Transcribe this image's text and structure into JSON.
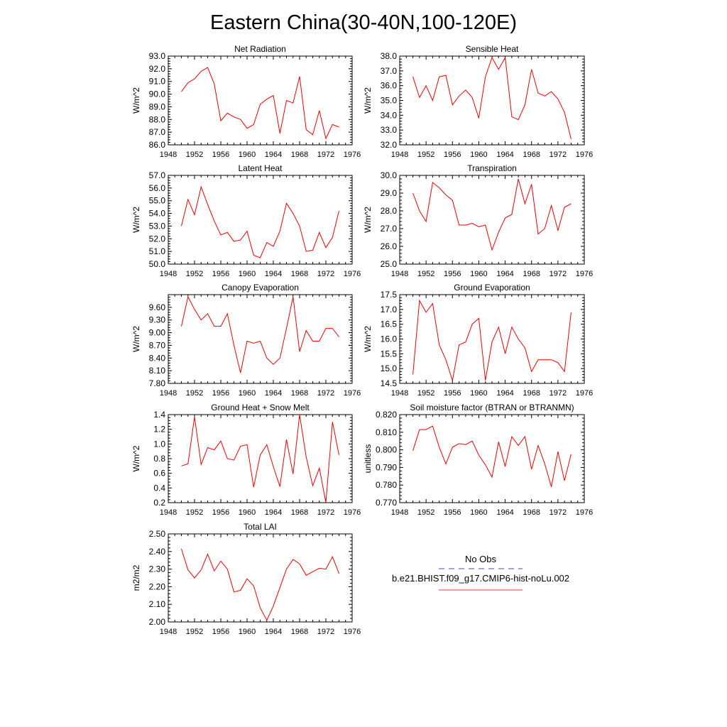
{
  "title": "Eastern China(30-40N,100-120E)",
  "legend": {
    "entries": [
      {
        "label": "No Obs",
        "color": "#4b4b9a",
        "style": "dashed"
      },
      {
        "label": "b.e21.BHIST.f09_g17.CMIP6-hist-noLu.002",
        "color": "#ee3333",
        "style": "solid"
      }
    ]
  },
  "chart_data": [
    {
      "type": "line",
      "title": "Net Radiation",
      "ylabel": "W/m^2",
      "xlim": [
        1948,
        1976
      ],
      "ylim": [
        86.0,
        93.0
      ],
      "xticks": [
        1948,
        1952,
        1956,
        1960,
        1964,
        1968,
        1972,
        1976
      ],
      "yticks": [
        "86.0",
        "87.0",
        "88.0",
        "89.0",
        "90.0",
        "91.0",
        "92.0",
        "93.0"
      ],
      "series": [
        {
          "color": "#ee0000",
          "x": [
            1950,
            1951,
            1952,
            1953,
            1954,
            1955,
            1956,
            1957,
            1958,
            1959,
            1960,
            1961,
            1962,
            1963,
            1964,
            1965,
            1966,
            1967,
            1968,
            1969,
            1970,
            1971,
            1972,
            1973,
            1974
          ],
          "y": [
            90.2,
            90.9,
            91.2,
            91.8,
            92.1,
            90.8,
            87.9,
            88.5,
            88.2,
            88.0,
            87.3,
            87.6,
            89.2,
            89.6,
            89.9,
            86.9,
            89.5,
            89.3,
            91.4,
            87.2,
            86.8,
            88.7,
            86.5,
            87.6,
            87.4
          ]
        }
      ]
    },
    {
      "type": "line",
      "title": "Sensible Heat",
      "ylabel": "W/m^2",
      "xlim": [
        1948,
        1976
      ],
      "ylim": [
        32.0,
        38.0
      ],
      "xticks": [
        1948,
        1952,
        1956,
        1960,
        1964,
        1968,
        1972,
        1976
      ],
      "yticks": [
        "32.0",
        "33.0",
        "34.0",
        "35.0",
        "36.0",
        "37.0",
        "38.0"
      ],
      "series": [
        {
          "color": "#ee0000",
          "x": [
            1950,
            1951,
            1952,
            1953,
            1954,
            1955,
            1956,
            1957,
            1958,
            1959,
            1960,
            1961,
            1962,
            1963,
            1964,
            1965,
            1966,
            1967,
            1968,
            1969,
            1970,
            1971,
            1972,
            1973,
            1974
          ],
          "y": [
            36.6,
            35.2,
            36.0,
            35.0,
            36.6,
            36.7,
            34.7,
            35.3,
            35.7,
            35.2,
            33.8,
            36.6,
            37.9,
            37.1,
            37.9,
            33.9,
            33.7,
            34.7,
            37.1,
            35.5,
            35.3,
            35.6,
            35.1,
            34.2,
            32.4
          ]
        }
      ]
    },
    {
      "type": "line",
      "title": "Latent Heat",
      "ylabel": "W/m^2",
      "xlim": [
        1948,
        1976
      ],
      "ylim": [
        50.0,
        57.0
      ],
      "xticks": [
        1948,
        1952,
        1956,
        1960,
        1964,
        1968,
        1972,
        1976
      ],
      "yticks": [
        "50.0",
        "51.0",
        "52.0",
        "53.0",
        "54.0",
        "55.0",
        "56.0",
        "57.0"
      ],
      "series": [
        {
          "color": "#ee0000",
          "x": [
            1950,
            1951,
            1952,
            1953,
            1954,
            1955,
            1956,
            1957,
            1958,
            1959,
            1960,
            1961,
            1962,
            1963,
            1964,
            1965,
            1966,
            1967,
            1968,
            1969,
            1970,
            1971,
            1972,
            1973,
            1974
          ],
          "y": [
            53.0,
            55.1,
            53.9,
            56.1,
            54.7,
            53.4,
            52.3,
            52.5,
            51.8,
            51.9,
            52.6,
            50.7,
            50.5,
            51.7,
            51.4,
            52.6,
            54.8,
            54.0,
            53.0,
            51.0,
            51.1,
            52.5,
            51.3,
            52.1,
            54.2
          ]
        }
      ]
    },
    {
      "type": "line",
      "title": "Transpiration",
      "ylabel": "W/m^2",
      "xlim": [
        1948,
        1976
      ],
      "ylim": [
        25.0,
        30.0
      ],
      "xticks": [
        1948,
        1952,
        1956,
        1960,
        1964,
        1968,
        1972,
        1976
      ],
      "yticks": [
        "25.0",
        "26.0",
        "27.0",
        "28.0",
        "29.0",
        "30.0"
      ],
      "series": [
        {
          "color": "#ee0000",
          "x": [
            1950,
            1951,
            1952,
            1953,
            1954,
            1955,
            1956,
            1957,
            1958,
            1959,
            1960,
            1961,
            1962,
            1963,
            1964,
            1965,
            1966,
            1967,
            1968,
            1969,
            1970,
            1971,
            1972,
            1973,
            1974
          ],
          "y": [
            29.0,
            28.0,
            27.4,
            29.6,
            29.3,
            28.9,
            28.6,
            27.2,
            27.2,
            27.3,
            27.1,
            27.2,
            25.8,
            26.8,
            27.6,
            27.8,
            29.8,
            28.4,
            29.5,
            26.7,
            27.0,
            28.3,
            26.9,
            28.2,
            28.4
          ]
        }
      ]
    },
    {
      "type": "line",
      "title": "Canopy Evaporation",
      "ylabel": "W/m^2",
      "xlim": [
        1948,
        1976
      ],
      "ylim": [
        7.8,
        9.9
      ],
      "xticks": [
        1948,
        1952,
        1956,
        1960,
        1964,
        1968,
        1972,
        1976
      ],
      "yticks": [
        "7.80",
        "8.10",
        "8.40",
        "8.70",
        "9.00",
        "9.30",
        "9.60"
      ],
      "series": [
        {
          "color": "#ee0000",
          "x": [
            1950,
            1951,
            1952,
            1953,
            1954,
            1955,
            1956,
            1957,
            1958,
            1959,
            1960,
            1961,
            1962,
            1963,
            1964,
            1965,
            1966,
            1967,
            1968,
            1969,
            1970,
            1971,
            1972,
            1973,
            1974
          ],
          "y": [
            9.15,
            9.85,
            9.55,
            9.3,
            9.45,
            9.15,
            9.15,
            9.45,
            8.7,
            8.05,
            8.8,
            8.75,
            8.8,
            8.4,
            8.25,
            8.4,
            9.1,
            9.85,
            8.55,
            9.05,
            8.8,
            8.8,
            9.1,
            9.1,
            8.9
          ]
        }
      ]
    },
    {
      "type": "line",
      "title": "Ground Evaporation",
      "ylabel": "W/m^2",
      "xlim": [
        1948,
        1976
      ],
      "ylim": [
        14.5,
        17.5
      ],
      "xticks": [
        1948,
        1952,
        1956,
        1960,
        1964,
        1968,
        1972,
        1976
      ],
      "yticks": [
        "14.5",
        "15.0",
        "15.5",
        "16.0",
        "16.5",
        "17.0",
        "17.5"
      ],
      "series": [
        {
          "color": "#ee0000",
          "x": [
            1950,
            1951,
            1952,
            1953,
            1954,
            1955,
            1956,
            1957,
            1958,
            1959,
            1960,
            1961,
            1962,
            1963,
            1964,
            1965,
            1966,
            1967,
            1968,
            1969,
            1970,
            1971,
            1972,
            1973,
            1974
          ],
          "y": [
            14.8,
            17.3,
            16.9,
            17.2,
            15.8,
            15.3,
            14.6,
            15.8,
            15.9,
            16.5,
            16.7,
            14.6,
            15.9,
            16.4,
            15.5,
            16.4,
            16.0,
            15.7,
            14.9,
            15.3,
            15.3,
            15.3,
            15.2,
            14.9,
            16.9
          ]
        }
      ]
    },
    {
      "type": "line",
      "title": "Ground Heat + Snow Melt",
      "ylabel": "W/m^2",
      "xlim": [
        1948,
        1976
      ],
      "ylim": [
        0.2,
        1.4
      ],
      "xticks": [
        1948,
        1952,
        1956,
        1960,
        1964,
        1968,
        1972,
        1976
      ],
      "yticks": [
        "0.2",
        "0.4",
        "0.6",
        "0.8",
        "1.0",
        "1.2",
        "1.4"
      ],
      "series": [
        {
          "color": "#ee0000",
          "x": [
            1950,
            1951,
            1952,
            1953,
            1954,
            1955,
            1956,
            1957,
            1958,
            1959,
            1960,
            1961,
            1962,
            1963,
            1964,
            1965,
            1966,
            1967,
            1968,
            1969,
            1970,
            1971,
            1972,
            1973,
            1974
          ],
          "y": [
            0.7,
            0.73,
            1.37,
            0.72,
            0.95,
            0.92,
            1.04,
            0.8,
            0.78,
            0.97,
            0.99,
            0.41,
            0.85,
            0.99,
            0.69,
            0.42,
            1.06,
            0.59,
            1.4,
            0.82,
            0.43,
            0.67,
            0.2,
            1.3,
            0.85
          ]
        }
      ]
    },
    {
      "type": "line",
      "title": "Soil moisture factor (BTRAN or BTRANMN)",
      "ylabel": "unitless",
      "xlim": [
        1948,
        1976
      ],
      "ylim": [
        0.77,
        0.82
      ],
      "xticks": [
        1948,
        1952,
        1956,
        1960,
        1964,
        1968,
        1972,
        1976
      ],
      "yticks": [
        "0.770",
        "0.780",
        "0.790",
        "0.800",
        "0.810",
        "0.820"
      ],
      "series": [
        {
          "color": "#ee0000",
          "x": [
            1950,
            1951,
            1952,
            1953,
            1954,
            1955,
            1956,
            1957,
            1958,
            1959,
            1960,
            1961,
            1962,
            1963,
            1964,
            1965,
            1966,
            1967,
            1968,
            1969,
            1970,
            1971,
            1972,
            1973,
            1974
          ],
          "y": [
            0.7995,
            0.8115,
            0.8115,
            0.8135,
            0.8015,
            0.792,
            0.8015,
            0.8035,
            0.803,
            0.805,
            0.797,
            0.7915,
            0.7845,
            0.8045,
            0.7905,
            0.8075,
            0.8025,
            0.8075,
            0.789,
            0.8025,
            0.792,
            0.779,
            0.799,
            0.7825,
            0.7975
          ]
        }
      ]
    },
    {
      "type": "line",
      "title": "Total LAI",
      "ylabel": "m2/m2",
      "xlim": [
        1948,
        1976
      ],
      "ylim": [
        2.0,
        2.5
      ],
      "xticks": [
        1948,
        1952,
        1956,
        1960,
        1964,
        1968,
        1972,
        1976
      ],
      "yticks": [
        "2.00",
        "2.10",
        "2.20",
        "2.30",
        "2.40",
        "2.50"
      ],
      "series": [
        {
          "color": "#ee0000",
          "x": [
            1950,
            1951,
            1952,
            1953,
            1954,
            1955,
            1956,
            1957,
            1958,
            1959,
            1960,
            1961,
            1962,
            1963,
            1964,
            1965,
            1966,
            1967,
            1968,
            1969,
            1970,
            1971,
            1972,
            1973,
            1974
          ],
          "y": [
            2.415,
            2.295,
            2.25,
            2.295,
            2.385,
            2.29,
            2.345,
            2.3,
            2.17,
            2.18,
            2.245,
            2.205,
            2.08,
            2.01,
            2.09,
            2.195,
            2.3,
            2.355,
            2.33,
            2.265,
            2.285,
            2.305,
            2.3,
            2.37,
            2.275
          ]
        }
      ]
    }
  ]
}
